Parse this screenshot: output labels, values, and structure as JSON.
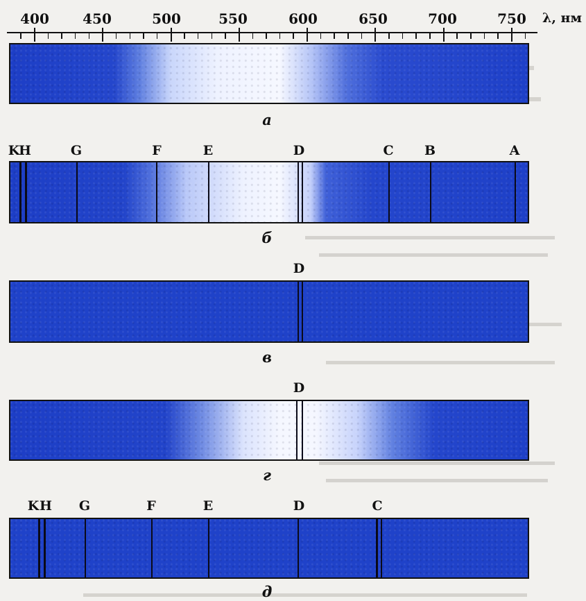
{
  "scale": {
    "ticks": [
      "400",
      "450",
      "500",
      "550",
      "600",
      "650",
      "700",
      "750"
    ],
    "unit": "λ, нм"
  },
  "colors": {
    "deep_blue": "#1d3fc7",
    "light": "#f4f6ff",
    "line": "#0a0a18"
  },
  "panels": [
    {
      "caption": "а",
      "lines": []
    },
    {
      "caption": "б",
      "lines": [
        {
          "label": "K"
        },
        {
          "label": "H"
        },
        {
          "label": "G"
        },
        {
          "label": "F"
        },
        {
          "label": "E"
        },
        {
          "label": "D"
        },
        {
          "label": "C"
        },
        {
          "label": "B"
        },
        {
          "label": "A"
        }
      ]
    },
    {
      "caption": "в",
      "lines": [
        {
          "label": "D"
        }
      ]
    },
    {
      "caption": "г",
      "lines": [
        {
          "label": "D"
        }
      ]
    },
    {
      "caption": "д",
      "lines": [
        {
          "label": "K"
        },
        {
          "label": "H"
        },
        {
          "label": "G"
        },
        {
          "label": "F"
        },
        {
          "label": "E"
        },
        {
          "label": "D"
        },
        {
          "label": "C"
        }
      ]
    }
  ]
}
